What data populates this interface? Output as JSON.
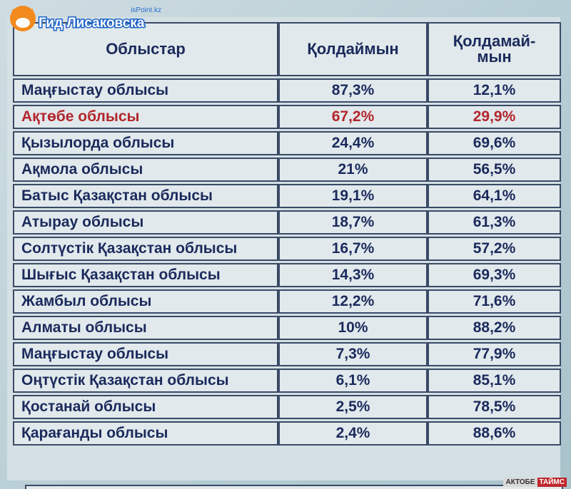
{
  "logo": {
    "site": "isPoint.kz",
    "name": "Гид Лисаковска"
  },
  "table": {
    "header": [
      "Облыстар",
      "Қолдаймын",
      "Қолдамай-\nмын"
    ],
    "rows": [
      [
        "Маңғыстау облысы",
        "87,3%",
        "12,1%"
      ],
      [
        "Ақтөбе облысы",
        "67,2%",
        "29,9%"
      ],
      [
        "Қызылорда облысы",
        "24,4%",
        "69,6%"
      ],
      [
        "Ақмола облысы",
        "21%",
        "56,5%"
      ],
      [
        "Батыс Қазақстан облысы",
        "19,1%",
        "64,1%"
      ],
      [
        "Атырау облысы",
        "18,7%",
        "61,3%"
      ],
      [
        "Солтүстік Қазақстан облысы",
        "16,7%",
        "57,2%"
      ],
      [
        "Шығыс Қазақстан облысы",
        "14,3%",
        "69,3%"
      ],
      [
        "Жамбыл облысы",
        "12,2%",
        "71,6%"
      ],
      [
        "Алматы облысы",
        "10%",
        "88,2%"
      ],
      [
        "Маңғыстау облысы",
        "7,3%",
        "77,9%"
      ],
      [
        "Оңтүстік Қазақстан облысы",
        "6,1%",
        "85,1%"
      ],
      [
        "Қостанай облысы",
        "2,5%",
        "78,5%"
      ],
      [
        "Қарағанды облысы",
        "2,4%",
        "88,6%"
      ]
    ]
  },
  "watermark": {
    "left": "АКТОБЕ",
    "right": "ТАЙМС"
  }
}
